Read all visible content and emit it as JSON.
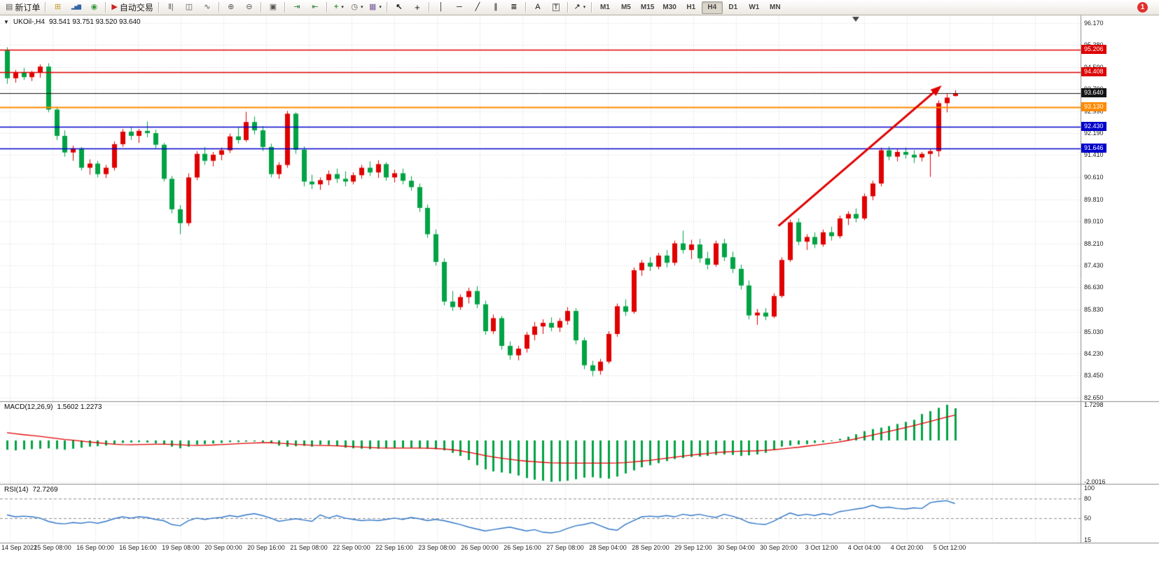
{
  "toolbar": {
    "new_order": "新订单",
    "auto_trading": "自动交易",
    "timeframes": [
      "M1",
      "M5",
      "M15",
      "M30",
      "H1",
      "H4",
      "D1",
      "W1",
      "MN"
    ],
    "active_timeframe": "H4",
    "notification_count": "1"
  },
  "icons": {
    "new_order": "▤",
    "new_chart": "⊞",
    "profiles": "▂▅▇",
    "community": "◉",
    "auto_trading": "▶",
    "bar_chart": "‖|",
    "candlestick": "◫",
    "line_chart": "∿",
    "zoom_in": "⊕",
    "zoom_out": "⊖",
    "tile_windows": "▣",
    "auto_scroll": "⇥",
    "chart_shift": "⇤",
    "indicators": "+",
    "periods": "◷",
    "templates": "▦",
    "cursor": "↖",
    "crosshair": "+",
    "vertical_line": "│",
    "horizontal_line": "─",
    "trend_line": "╱",
    "channel": "∥",
    "fibonacci": "≣",
    "text": "A",
    "text_label": "T",
    "shapes": "↗",
    "dropdown_caret": "▾",
    "symbol_dropdown": "▼"
  },
  "chart_data": [
    {
      "type": "candlestick",
      "title": "UKOil-,H4",
      "ohlc_text": "93.541 93.751 93.520 93.640",
      "symbol": "UKOil-",
      "period": "H4",
      "up_color": "#e00000",
      "down_color": "#00a344",
      "ylim": [
        82.65,
        96.17
      ],
      "y_ticks": [
        "96.170",
        "95.380",
        "94.590",
        "93.790",
        "92.990",
        "92.190",
        "91.410",
        "90.610",
        "89.810",
        "89.010",
        "88.210",
        "87.430",
        "86.630",
        "85.830",
        "85.030",
        "84.230",
        "83.450",
        "82.650"
      ],
      "x_ticks": [
        "14 Sep 2022",
        "15 Sep 08:00",
        "16 Sep 00:00",
        "16 Sep 16:00",
        "19 Sep 08:00",
        "20 Sep 00:00",
        "20 Sep 16:00",
        "21 Sep 08:00",
        "22 Sep 00:00",
        "22 Sep 16:00",
        "23 Sep 08:00",
        "26 Sep 00:00",
        "26 Sep 16:00",
        "27 Sep 08:00",
        "28 Sep 04:00",
        "28 Sep 20:00",
        "29 Sep 12:00",
        "30 Sep 04:00",
        "30 Sep 20:00",
        "3 Oct 12:00",
        "4 Oct 04:00",
        "4 Oct 20:00",
        "5 Oct 12:00"
      ],
      "hlines": [
        {
          "value": 95.206,
          "label": "95.206",
          "color": "#dd0000",
          "width": 1.5
        },
        {
          "value": 94.408,
          "label": "94.408",
          "color": "#dd0000",
          "width": 1.5
        },
        {
          "value": 93.64,
          "label": "93.640",
          "color": "#151515",
          "width": 1
        },
        {
          "value": 93.13,
          "label": "93.130",
          "color": "#ff8a00",
          "width": 2
        },
        {
          "value": 92.43,
          "label": "92.430",
          "color": "#0000cc",
          "width": 1.5
        },
        {
          "value": 91.646,
          "label": "91.646",
          "color": "#0000cc",
          "width": 1.5
        }
      ],
      "arrow": {
        "from_index": 93.6,
        "from_price": 88.85,
        "to_index": 113.4,
        "to_price": 93.92,
        "color": "#e00000"
      },
      "ohlc": [
        [
          95.18,
          95.3,
          93.98,
          94.18
        ],
        [
          94.18,
          94.48,
          94.02,
          94.4
        ],
        [
          94.4,
          94.55,
          94.12,
          94.22
        ],
        [
          94.22,
          94.45,
          94.08,
          94.38
        ],
        [
          94.38,
          94.68,
          94.2,
          94.6
        ],
        [
          94.6,
          94.72,
          92.95,
          93.05
        ],
        [
          93.05,
          93.15,
          91.95,
          92.1
        ],
        [
          92.1,
          92.3,
          91.35,
          91.5
        ],
        [
          91.5,
          91.75,
          91.2,
          91.65
        ],
        [
          91.65,
          91.7,
          90.85,
          90.95
        ],
        [
          90.95,
          91.25,
          90.7,
          91.1
        ],
        [
          91.1,
          91.2,
          90.6,
          90.72
        ],
        [
          90.72,
          91.05,
          90.58,
          90.95
        ],
        [
          90.95,
          91.9,
          90.85,
          91.8
        ],
        [
          91.8,
          92.35,
          91.7,
          92.25
        ],
        [
          92.25,
          92.42,
          91.95,
          92.1
        ],
        [
          92.1,
          92.35,
          91.85,
          92.28
        ],
        [
          92.28,
          92.62,
          92.05,
          92.2
        ],
        [
          92.2,
          92.32,
          91.65,
          91.78
        ],
        [
          91.78,
          91.85,
          90.45,
          90.55
        ],
        [
          90.55,
          90.65,
          89.3,
          89.45
        ],
        [
          89.45,
          89.6,
          88.55,
          88.95
        ],
        [
          88.95,
          90.75,
          88.85,
          90.6
        ],
        [
          90.6,
          91.55,
          90.5,
          91.45
        ],
        [
          91.45,
          91.7,
          91.05,
          91.2
        ],
        [
          91.2,
          91.52,
          91.0,
          91.42
        ],
        [
          91.42,
          91.68,
          91.22,
          91.58
        ],
        [
          91.58,
          92.18,
          91.48,
          92.08
        ],
        [
          92.08,
          92.4,
          91.82,
          91.95
        ],
        [
          91.95,
          92.97,
          91.88,
          92.6
        ],
        [
          92.6,
          92.8,
          92.15,
          92.3
        ],
        [
          92.3,
          92.45,
          91.55,
          91.7
        ],
        [
          91.7,
          91.82,
          90.6,
          90.72
        ],
        [
          90.72,
          91.15,
          90.55,
          91.05
        ],
        [
          91.05,
          93.0,
          90.95,
          92.9
        ],
        [
          92.9,
          92.95,
          91.45,
          91.6
        ],
        [
          91.6,
          91.72,
          90.28,
          90.45
        ],
        [
          90.45,
          90.7,
          90.18,
          90.35
        ],
        [
          90.35,
          90.6,
          90.15,
          90.5
        ],
        [
          90.5,
          90.85,
          90.32,
          90.72
        ],
        [
          90.72,
          90.92,
          90.4,
          90.55
        ],
        [
          90.55,
          90.82,
          90.28,
          90.45
        ],
        [
          90.45,
          90.78,
          90.35,
          90.68
        ],
        [
          90.68,
          91.05,
          90.55,
          90.95
        ],
        [
          90.95,
          91.18,
          90.65,
          90.78
        ],
        [
          90.78,
          91.22,
          90.58,
          91.08
        ],
        [
          91.08,
          91.15,
          90.48,
          90.6
        ],
        [
          90.6,
          90.88,
          90.42,
          90.75
        ],
        [
          90.75,
          90.92,
          90.35,
          90.48
        ],
        [
          90.48,
          90.65,
          90.12,
          90.25
        ],
        [
          90.25,
          90.38,
          89.35,
          89.5
        ],
        [
          89.5,
          89.62,
          88.42,
          88.55
        ],
        [
          88.55,
          88.72,
          87.42,
          87.55
        ],
        [
          87.55,
          87.68,
          85.98,
          86.12
        ],
        [
          86.12,
          86.5,
          85.78,
          85.92
        ],
        [
          85.92,
          86.38,
          85.82,
          86.28
        ],
        [
          86.28,
          86.62,
          86.05,
          86.5
        ],
        [
          86.5,
          86.68,
          85.88,
          86.02
        ],
        [
          86.02,
          86.15,
          84.92,
          85.05
        ],
        [
          85.05,
          85.65,
          84.95,
          85.52
        ],
        [
          85.52,
          85.6,
          84.38,
          84.52
        ],
        [
          84.52,
          84.68,
          84.02,
          84.18
        ],
        [
          84.18,
          84.52,
          84.0,
          84.42
        ],
        [
          84.42,
          85.02,
          84.28,
          84.92
        ],
        [
          84.92,
          85.38,
          84.72,
          85.22
        ],
        [
          85.22,
          85.48,
          84.95,
          85.35
        ],
        [
          85.35,
          85.55,
          85.05,
          85.18
        ],
        [
          85.18,
          85.52,
          85.02,
          85.42
        ],
        [
          85.42,
          85.92,
          85.28,
          85.78
        ],
        [
          85.78,
          85.88,
          84.58,
          84.72
        ],
        [
          84.72,
          84.82,
          83.68,
          83.82
        ],
        [
          83.82,
          83.98,
          83.42,
          83.62
        ],
        [
          83.62,
          84.05,
          83.48,
          83.95
        ],
        [
          83.95,
          85.05,
          83.88,
          84.95
        ],
        [
          84.95,
          86.05,
          84.85,
          85.95
        ],
        [
          85.95,
          86.2,
          85.6,
          85.75
        ],
        [
          85.75,
          87.35,
          85.68,
          87.25
        ],
        [
          87.25,
          87.62,
          87.05,
          87.52
        ],
        [
          87.52,
          87.72,
          87.22,
          87.38
        ],
        [
          87.38,
          87.88,
          87.28,
          87.78
        ],
        [
          87.78,
          87.98,
          87.35,
          87.52
        ],
        [
          87.52,
          88.32,
          87.42,
          88.22
        ],
        [
          88.22,
          88.68,
          87.85,
          87.98
        ],
        [
          87.98,
          88.35,
          87.65,
          88.18
        ],
        [
          88.18,
          88.38,
          87.52,
          87.68
        ],
        [
          87.68,
          87.92,
          87.28,
          87.45
        ],
        [
          87.45,
          88.32,
          87.38,
          88.22
        ],
        [
          88.22,
          88.38,
          87.58,
          87.72
        ],
        [
          87.72,
          87.92,
          87.15,
          87.3
        ],
        [
          87.3,
          87.45,
          86.55,
          86.7
        ],
        [
          86.7,
          86.88,
          85.48,
          85.62
        ],
        [
          85.62,
          85.85,
          85.28,
          85.72
        ],
        [
          85.72,
          85.88,
          85.45,
          85.58
        ],
        [
          85.58,
          86.42,
          85.52,
          86.32
        ],
        [
          86.32,
          87.72,
          86.25,
          87.62
        ],
        [
          87.62,
          89.08,
          87.55,
          88.98
        ],
        [
          88.98,
          89.12,
          88.15,
          88.28
        ],
        [
          88.28,
          88.55,
          87.98,
          88.45
        ],
        [
          88.45,
          88.62,
          88.05,
          88.18
        ],
        [
          88.18,
          88.72,
          88.1,
          88.62
        ],
        [
          88.62,
          88.82,
          88.32,
          88.48
        ],
        [
          88.48,
          89.22,
          88.4,
          89.12
        ],
        [
          89.12,
          89.38,
          88.88,
          89.28
        ],
        [
          89.28,
          89.48,
          88.98,
          89.12
        ],
        [
          89.12,
          90.02,
          89.05,
          89.92
        ],
        [
          89.92,
          90.48,
          89.78,
          90.38
        ],
        [
          90.38,
          91.68,
          90.28,
          91.58
        ],
        [
          91.58,
          91.72,
          91.22,
          91.35
        ],
        [
          91.35,
          91.62,
          91.18,
          91.52
        ],
        [
          91.52,
          91.68,
          91.28,
          91.42
        ],
        [
          91.42,
          91.58,
          91.12,
          91.32
        ],
        [
          91.32,
          91.52,
          91.18,
          91.45
        ],
        [
          91.45,
          91.62,
          90.62,
          91.55
        ],
        [
          91.55,
          93.38,
          91.35,
          93.28
        ],
        [
          93.28,
          93.62,
          92.95,
          93.48
        ],
        [
          93.541,
          93.751,
          93.52,
          93.64
        ]
      ]
    },
    {
      "type": "bar",
      "name": "MACD(12,26,9)",
      "current": "1.5602 1.2273",
      "bar_color": "#00a344",
      "signal_color": "#e00000",
      "ylim": [
        -2.0016,
        1.7298
      ],
      "y_ticks": [
        "1.7298",
        "-2.0016"
      ],
      "histogram": [
        -0.45,
        -0.48,
        -0.44,
        -0.42,
        -0.4,
        -0.38,
        -0.42,
        -0.45,
        -0.4,
        -0.35,
        -0.3,
        -0.28,
        -0.25,
        -0.18,
        -0.12,
        -0.1,
        -0.08,
        -0.1,
        -0.14,
        -0.18,
        -0.3,
        -0.38,
        -0.3,
        -0.2,
        -0.18,
        -0.15,
        -0.12,
        -0.08,
        -0.08,
        -0.06,
        -0.05,
        -0.08,
        -0.14,
        -0.25,
        -0.3,
        -0.28,
        -0.26,
        -0.3,
        -0.2,
        -0.22,
        -0.28,
        -0.35,
        -0.38,
        -0.4,
        -0.42,
        -0.4,
        -0.38,
        -0.37,
        -0.35,
        -0.36,
        -0.38,
        -0.4,
        -0.42,
        -0.48,
        -0.6,
        -0.75,
        -0.95,
        -1.2,
        -1.4,
        -1.5,
        -1.55,
        -1.6,
        -1.7,
        -1.82,
        -1.9,
        -1.95,
        -2.0,
        -1.98,
        -1.95,
        -1.88,
        -1.8,
        -1.78,
        -1.82,
        -1.85,
        -1.75,
        -1.6,
        -1.45,
        -1.3,
        -1.2,
        -1.1,
        -1.0,
        -0.9,
        -0.85,
        -0.8,
        -0.78,
        -0.75,
        -0.7,
        -0.68,
        -0.7,
        -0.75,
        -0.72,
        -0.68,
        -0.6,
        -0.45,
        -0.3,
        -0.25,
        -0.2,
        -0.18,
        -0.12,
        -0.08,
        0.0,
        0.08,
        0.18,
        0.3,
        0.45,
        0.55,
        0.62,
        0.7,
        0.8,
        0.9,
        1.0,
        1.28,
        1.42,
        1.58,
        1.7298,
        1.5602
      ],
      "signal": [
        0.38,
        0.33,
        0.28,
        0.24,
        0.2,
        0.15,
        0.1,
        0.05,
        0.01,
        -0.03,
        -0.07,
        -0.11,
        -0.15,
        -0.18,
        -0.2,
        -0.21,
        -0.2,
        -0.19,
        -0.18,
        -0.18,
        -0.19,
        -0.21,
        -0.23,
        -0.24,
        -0.23,
        -0.22,
        -0.2,
        -0.18,
        -0.16,
        -0.14,
        -0.12,
        -0.11,
        -0.11,
        -0.13,
        -0.16,
        -0.19,
        -0.21,
        -0.23,
        -0.24,
        -0.25,
        -0.26,
        -0.28,
        -0.3,
        -0.32,
        -0.34,
        -0.36,
        -0.37,
        -0.37,
        -0.37,
        -0.37,
        -0.37,
        -0.38,
        -0.39,
        -0.41,
        -0.45,
        -0.5,
        -0.57,
        -0.65,
        -0.73,
        -0.8,
        -0.86,
        -0.91,
        -0.96,
        -1.0,
        -1.03,
        -1.06,
        -1.08,
        -1.09,
        -1.1,
        -1.1,
        -1.1,
        -1.1,
        -1.1,
        -1.1,
        -1.09,
        -1.07,
        -1.04,
        -1.0,
        -0.96,
        -0.91,
        -0.86,
        -0.81,
        -0.76,
        -0.71,
        -0.67,
        -0.63,
        -0.59,
        -0.56,
        -0.54,
        -0.52,
        -0.51,
        -0.5,
        -0.48,
        -0.45,
        -0.41,
        -0.37,
        -0.33,
        -0.28,
        -0.23,
        -0.18,
        -0.13,
        -0.07,
        0.0,
        0.08,
        0.17,
        0.26,
        0.35,
        0.44,
        0.53,
        0.62,
        0.72,
        0.82,
        0.92,
        1.03,
        1.13,
        1.2273
      ]
    },
    {
      "type": "line",
      "name": "RSI(14)",
      "current": "72.7269",
      "color": "#2e75c8",
      "levels": [
        80,
        50
      ],
      "ylim": [
        15,
        100
      ],
      "y_ticks": [
        "100",
        "80",
        "50",
        "15"
      ],
      "values": [
        55,
        52,
        53,
        52,
        50,
        45,
        42,
        41,
        43,
        42,
        44,
        42,
        45,
        49,
        52,
        50,
        52,
        51,
        48,
        46,
        40,
        38,
        46,
        50,
        48,
        50,
        51,
        54,
        52,
        55,
        57,
        54,
        50,
        45,
        47,
        49,
        47,
        45,
        55,
        50,
        54,
        50,
        48,
        46,
        47,
        46,
        48,
        50,
        48,
        51,
        49,
        46,
        48,
        46,
        43,
        40,
        36,
        33,
        30,
        32,
        34,
        36,
        33,
        30,
        32,
        28,
        27,
        29,
        34,
        38,
        40,
        43,
        38,
        33,
        31,
        40,
        46,
        52,
        53,
        52,
        54,
        52,
        56,
        54,
        56,
        53,
        51,
        56,
        53,
        49,
        43,
        41,
        40,
        45,
        52,
        58,
        54,
        56,
        54,
        57,
        55,
        60,
        62,
        64,
        66,
        70,
        66,
        67,
        65,
        64,
        66,
        65,
        74,
        76,
        77,
        72.7269
      ]
    }
  ]
}
